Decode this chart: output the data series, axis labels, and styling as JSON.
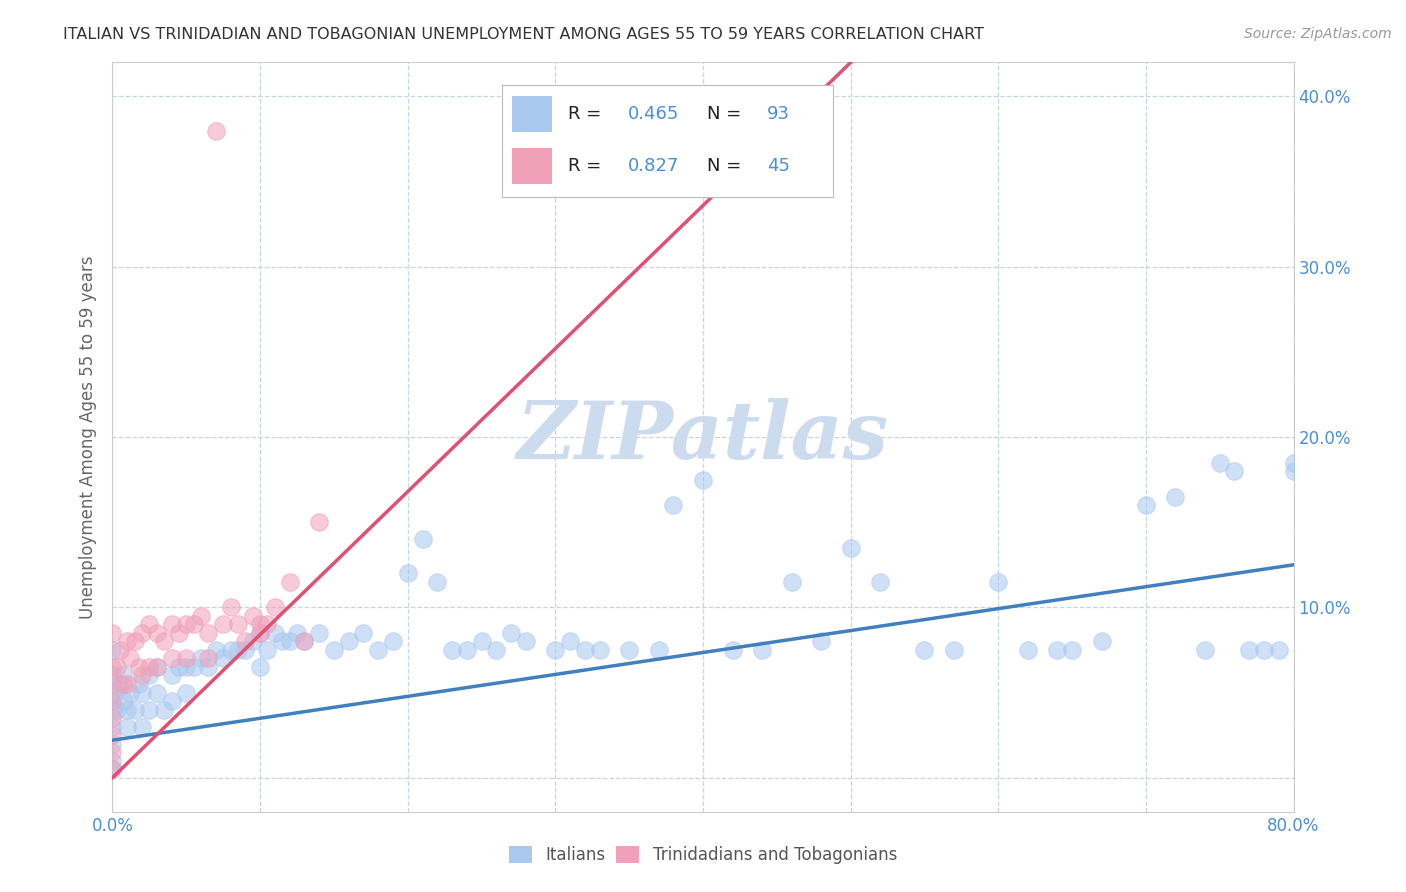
{
  "title": "ITALIAN VS TRINIDADIAN AND TOBAGONIAN UNEMPLOYMENT AMONG AGES 55 TO 59 YEARS CORRELATION CHART",
  "source": "Source: ZipAtlas.com",
  "ylabel": "Unemployment Among Ages 55 to 59 years",
  "xlim": [
    0.0,
    0.8
  ],
  "ylim": [
    -0.02,
    0.42
  ],
  "xticks": [
    0.0,
    0.1,
    0.2,
    0.3,
    0.4,
    0.5,
    0.6,
    0.7,
    0.8
  ],
  "yticks": [
    0.0,
    0.1,
    0.2,
    0.3,
    0.4
  ],
  "xticklabels": [
    "0.0%",
    "",
    "",
    "",
    "",
    "",
    "",
    "",
    "80.0%"
  ],
  "yticklabels": [
    "",
    "10.0%",
    "20.0%",
    "30.0%",
    "40.0%"
  ],
  "italian_R": "0.465",
  "italian_N": "93",
  "tnt_R": "0.827",
  "tnt_N": "45",
  "italian_color": "#a8c8f0",
  "tnt_color": "#f0a0b8",
  "italian_line_color": "#4080c0",
  "tnt_line_color": "#e05070",
  "legend_color": "#4a90d9",
  "watermark": "ZIPatlas",
  "watermark_color": "#ccdcee",
  "background_color": "#ffffff",
  "grid_color": "#c8d4e4",
  "title_color": "#333333",
  "source_color": "#999999",
  "italian_scatter_x": [
    0.0,
    0.0,
    0.0,
    0.0,
    0.0,
    0.0,
    0.0,
    0.0,
    0.002,
    0.003,
    0.005,
    0.007,
    0.008,
    0.01,
    0.01,
    0.012,
    0.015,
    0.018,
    0.02,
    0.02,
    0.025,
    0.025,
    0.03,
    0.03,
    0.035,
    0.04,
    0.04,
    0.045,
    0.05,
    0.05,
    0.055,
    0.06,
    0.065,
    0.07,
    0.075,
    0.08,
    0.085,
    0.09,
    0.095,
    0.1,
    0.1,
    0.105,
    0.11,
    0.115,
    0.12,
    0.125,
    0.13,
    0.14,
    0.15,
    0.16,
    0.17,
    0.18,
    0.19,
    0.2,
    0.21,
    0.22,
    0.23,
    0.24,
    0.25,
    0.26,
    0.27,
    0.28,
    0.3,
    0.31,
    0.32,
    0.33,
    0.35,
    0.37,
    0.38,
    0.4,
    0.42,
    0.44,
    0.46,
    0.48,
    0.5,
    0.52,
    0.55,
    0.57,
    0.6,
    0.62,
    0.64,
    0.65,
    0.67,
    0.7,
    0.72,
    0.74,
    0.75,
    0.76,
    0.77,
    0.78,
    0.79,
    0.8,
    0.8
  ],
  "italian_scatter_y": [
    0.075,
    0.06,
    0.05,
    0.04,
    0.03,
    0.02,
    0.01,
    0.005,
    0.05,
    0.04,
    0.055,
    0.06,
    0.045,
    0.04,
    0.03,
    0.05,
    0.04,
    0.055,
    0.05,
    0.03,
    0.06,
    0.04,
    0.065,
    0.05,
    0.04,
    0.06,
    0.045,
    0.065,
    0.065,
    0.05,
    0.065,
    0.07,
    0.065,
    0.075,
    0.07,
    0.075,
    0.075,
    0.075,
    0.08,
    0.085,
    0.065,
    0.075,
    0.085,
    0.08,
    0.08,
    0.085,
    0.08,
    0.085,
    0.075,
    0.08,
    0.085,
    0.075,
    0.08,
    0.12,
    0.14,
    0.115,
    0.075,
    0.075,
    0.08,
    0.075,
    0.085,
    0.08,
    0.075,
    0.08,
    0.075,
    0.075,
    0.075,
    0.075,
    0.16,
    0.175,
    0.075,
    0.075,
    0.115,
    0.08,
    0.135,
    0.115,
    0.075,
    0.075,
    0.115,
    0.075,
    0.075,
    0.075,
    0.08,
    0.16,
    0.165,
    0.075,
    0.185,
    0.18,
    0.075,
    0.075,
    0.075,
    0.18,
    0.185
  ],
  "tnt_scatter_x": [
    0.0,
    0.0,
    0.0,
    0.0,
    0.0,
    0.0,
    0.0,
    0.0,
    0.003,
    0.005,
    0.007,
    0.01,
    0.01,
    0.012,
    0.015,
    0.018,
    0.02,
    0.02,
    0.025,
    0.025,
    0.03,
    0.03,
    0.035,
    0.04,
    0.04,
    0.045,
    0.05,
    0.05,
    0.055,
    0.06,
    0.065,
    0.065,
    0.07,
    0.075,
    0.08,
    0.085,
    0.09,
    0.095,
    0.1,
    0.1,
    0.105,
    0.11,
    0.12,
    0.13,
    0.14
  ],
  "tnt_scatter_y": [
    0.085,
    0.065,
    0.055,
    0.045,
    0.035,
    0.025,
    0.015,
    0.005,
    0.065,
    0.075,
    0.055,
    0.08,
    0.055,
    0.07,
    0.08,
    0.065,
    0.085,
    0.06,
    0.09,
    0.065,
    0.085,
    0.065,
    0.08,
    0.09,
    0.07,
    0.085,
    0.09,
    0.07,
    0.09,
    0.095,
    0.085,
    0.07,
    0.38,
    0.09,
    0.1,
    0.09,
    0.08,
    0.095,
    0.09,
    0.085,
    0.09,
    0.1,
    0.115,
    0.08,
    0.15
  ],
  "italian_line_x": [
    0.0,
    0.8
  ],
  "italian_line_y": [
    0.022,
    0.125
  ],
  "tnt_line_x": [
    0.0,
    0.5
  ],
  "tnt_line_y": [
    0.0,
    0.42
  ]
}
